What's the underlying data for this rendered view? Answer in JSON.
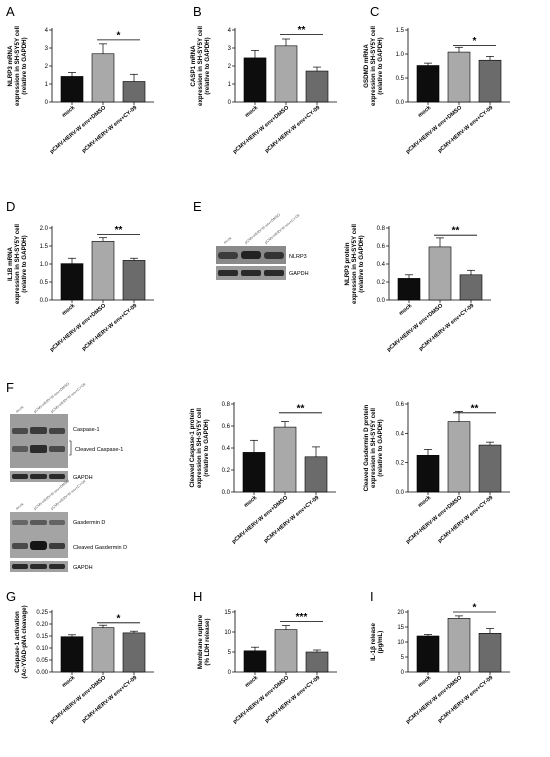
{
  "panel_letters": [
    "A",
    "B",
    "C",
    "D",
    "E",
    "F",
    "G",
    "H",
    "I"
  ],
  "categories": [
    "mock",
    "pCMV-HERV-W env+DMSO",
    "pCMV-HERV-W env+CY-09"
  ],
  "bar_colors": [
    "#0d0d0d",
    "#a9a9a9",
    "#6b6b6b"
  ],
  "blots": {
    "e_lanes": [
      "mock",
      "pCMV-HERV-W env+DMSO",
      "pCMV-HERV-W env+CY-09"
    ],
    "e_labels": [
      "NLRP3",
      "GAPDH"
    ],
    "f_lanes": [
      "mock",
      "pCMV-HERV-W env+DMSO",
      "pCMV-HERV-W env+CY-09"
    ],
    "f1_labels": [
      "Caspase-1",
      "Cleaved Caspase-1",
      "GAPDH"
    ],
    "f2_labels": [
      "Gasdermin D",
      "Cleaved Gasdermin D",
      "GAPDH"
    ]
  },
  "chart_data": [
    {
      "id": "A",
      "type": "bar",
      "ylabel": [
        "NLRP3 mRNA",
        "expression in SH-SY5Y cell",
        "(relative to GAPDH)"
      ],
      "ylim": [
        0,
        4
      ],
      "ticks": [
        0,
        1,
        2,
        3,
        4
      ],
      "tick_labels": [
        "0",
        "1",
        "2",
        "3",
        "4"
      ],
      "values": [
        1.42,
        2.68,
        1.14
      ],
      "errors": [
        0.22,
        0.55,
        0.4
      ],
      "sig": "*",
      "sig_between": [
        1,
        2
      ],
      "sig_y": 3.45
    },
    {
      "id": "B",
      "type": "bar",
      "ylabel": [
        "CASP1 mRNA",
        "expression in SH-SY5Y cell",
        "(relative to GAPDH)"
      ],
      "ylim": [
        0,
        4
      ],
      "ticks": [
        0,
        1,
        2,
        3,
        4
      ],
      "tick_labels": [
        "0",
        "1",
        "2",
        "3",
        "4"
      ],
      "values": [
        2.45,
        3.12,
        1.72
      ],
      "errors": [
        0.42,
        0.38,
        0.22
      ],
      "sig": "**",
      "sig_between": [
        1,
        2
      ],
      "sig_y": 3.75
    },
    {
      "id": "C",
      "type": "bar",
      "ylabel": [
        "GSDMD mRNA",
        "expression in SH-SY5Y cell",
        "(relative to GAPDH)"
      ],
      "ylim": [
        0,
        1.5
      ],
      "ticks": [
        0,
        0.5,
        1.0,
        1.5
      ],
      "tick_labels": [
        "0.0",
        "0.5",
        "1.0",
        "1.5"
      ],
      "values": [
        0.76,
        1.04,
        0.87
      ],
      "errors": [
        0.05,
        0.1,
        0.08
      ],
      "sig": "*",
      "sig_between": [
        1,
        2
      ],
      "sig_y": 1.18
    },
    {
      "id": "D",
      "type": "bar",
      "ylabel": [
        "IL1B mRNA",
        "expression in SH-SY5Y cell",
        "(relative to GAPDH)"
      ],
      "ylim": [
        0,
        2.0
      ],
      "ticks": [
        0,
        0.5,
        1.0,
        1.5,
        2.0
      ],
      "tick_labels": [
        "0.0",
        "0.5",
        "1.0",
        "1.5",
        "2.0"
      ],
      "values": [
        1.01,
        1.63,
        1.1
      ],
      "errors": [
        0.15,
        0.1,
        0.06
      ],
      "sig": "**",
      "sig_between": [
        1,
        2
      ],
      "sig_y": 1.82
    },
    {
      "id": "E",
      "type": "bar",
      "ylabel": [
        "NLRP3 protein",
        "expression in SH-SY5Y cell",
        "(relative to GAPDH)"
      ],
      "ylim": [
        0,
        0.8
      ],
      "ticks": [
        0,
        0.2,
        0.4,
        0.6,
        0.8
      ],
      "tick_labels": [
        "0.0",
        "0.2",
        "0.4",
        "0.6",
        "0.8"
      ],
      "values": [
        0.24,
        0.59,
        0.28
      ],
      "errors": [
        0.04,
        0.1,
        0.05
      ],
      "sig": "**",
      "sig_between": [
        1,
        2
      ],
      "sig_y": 0.72
    },
    {
      "id": "F1",
      "type": "bar",
      "ylabel": [
        "Cleaved Caspase-1 protein",
        "expression in SH-SY5Y cell",
        "(relative to GAPDH)"
      ],
      "ylim": [
        0,
        0.8
      ],
      "ticks": [
        0,
        0.2,
        0.4,
        0.6,
        0.8
      ],
      "tick_labels": [
        "0.0",
        "0.2",
        "0.4",
        "0.6",
        "0.8"
      ],
      "values": [
        0.36,
        0.59,
        0.32
      ],
      "errors": [
        0.11,
        0.05,
        0.09
      ],
      "sig": "**",
      "sig_between": [
        1,
        2
      ],
      "sig_y": 0.72
    },
    {
      "id": "F2",
      "type": "bar",
      "ylabel": [
        "Cleaved Gasdermin D protein",
        "expression in SH-SY5Y cell",
        "(relative to GAPDH)"
      ],
      "ylim": [
        0,
        0.6
      ],
      "ticks": [
        0,
        0.2,
        0.4,
        0.6
      ],
      "tick_labels": [
        "0.0",
        "0.2",
        "0.4",
        "0.6"
      ],
      "values": [
        0.25,
        0.48,
        0.32
      ],
      "errors": [
        0.04,
        0.07,
        0.02
      ],
      "sig": "**",
      "sig_between": [
        1,
        2
      ],
      "sig_y": 0.54
    },
    {
      "id": "G",
      "type": "bar",
      "ylabel": [
        "Caspase-1 activation",
        "(Ac-YVAD-pNA cleavage)"
      ],
      "ylim": [
        0,
        0.25
      ],
      "ticks": [
        0,
        0.05,
        0.1,
        0.15,
        0.2,
        0.25
      ],
      "tick_labels": [
        "0.00",
        "0.05",
        "0.10",
        "0.15",
        "0.20",
        "0.25"
      ],
      "values": [
        0.147,
        0.185,
        0.163
      ],
      "errors": [
        0.008,
        0.01,
        0.007
      ],
      "sig": "*",
      "sig_between": [
        1,
        2
      ],
      "sig_y": 0.205
    },
    {
      "id": "H",
      "type": "bar",
      "ylabel": [
        "Membrane rupture",
        "(% LDH release)"
      ],
      "ylim": [
        0,
        15
      ],
      "ticks": [
        0,
        5,
        10,
        15
      ],
      "tick_labels": [
        "0",
        "5",
        "10",
        "15"
      ],
      "values": [
        5.3,
        10.6,
        5.0
      ],
      "errors": [
        0.9,
        1.0,
        0.5
      ],
      "sig": "***",
      "sig_between": [
        1,
        2
      ],
      "sig_y": 12.6
    },
    {
      "id": "I",
      "type": "bar",
      "ylabel": [
        "IL-1β release",
        "(pg/mL)"
      ],
      "ylim": [
        0,
        20
      ],
      "ticks": [
        0,
        5,
        10,
        15,
        20
      ],
      "tick_labels": [
        "0",
        "5",
        "10",
        "15",
        "20"
      ],
      "values": [
        12.0,
        17.9,
        12.9
      ],
      "errors": [
        0.5,
        0.8,
        1.6
      ],
      "sig": "*",
      "sig_between": [
        1,
        2
      ],
      "sig_y": 20.0
    }
  ]
}
